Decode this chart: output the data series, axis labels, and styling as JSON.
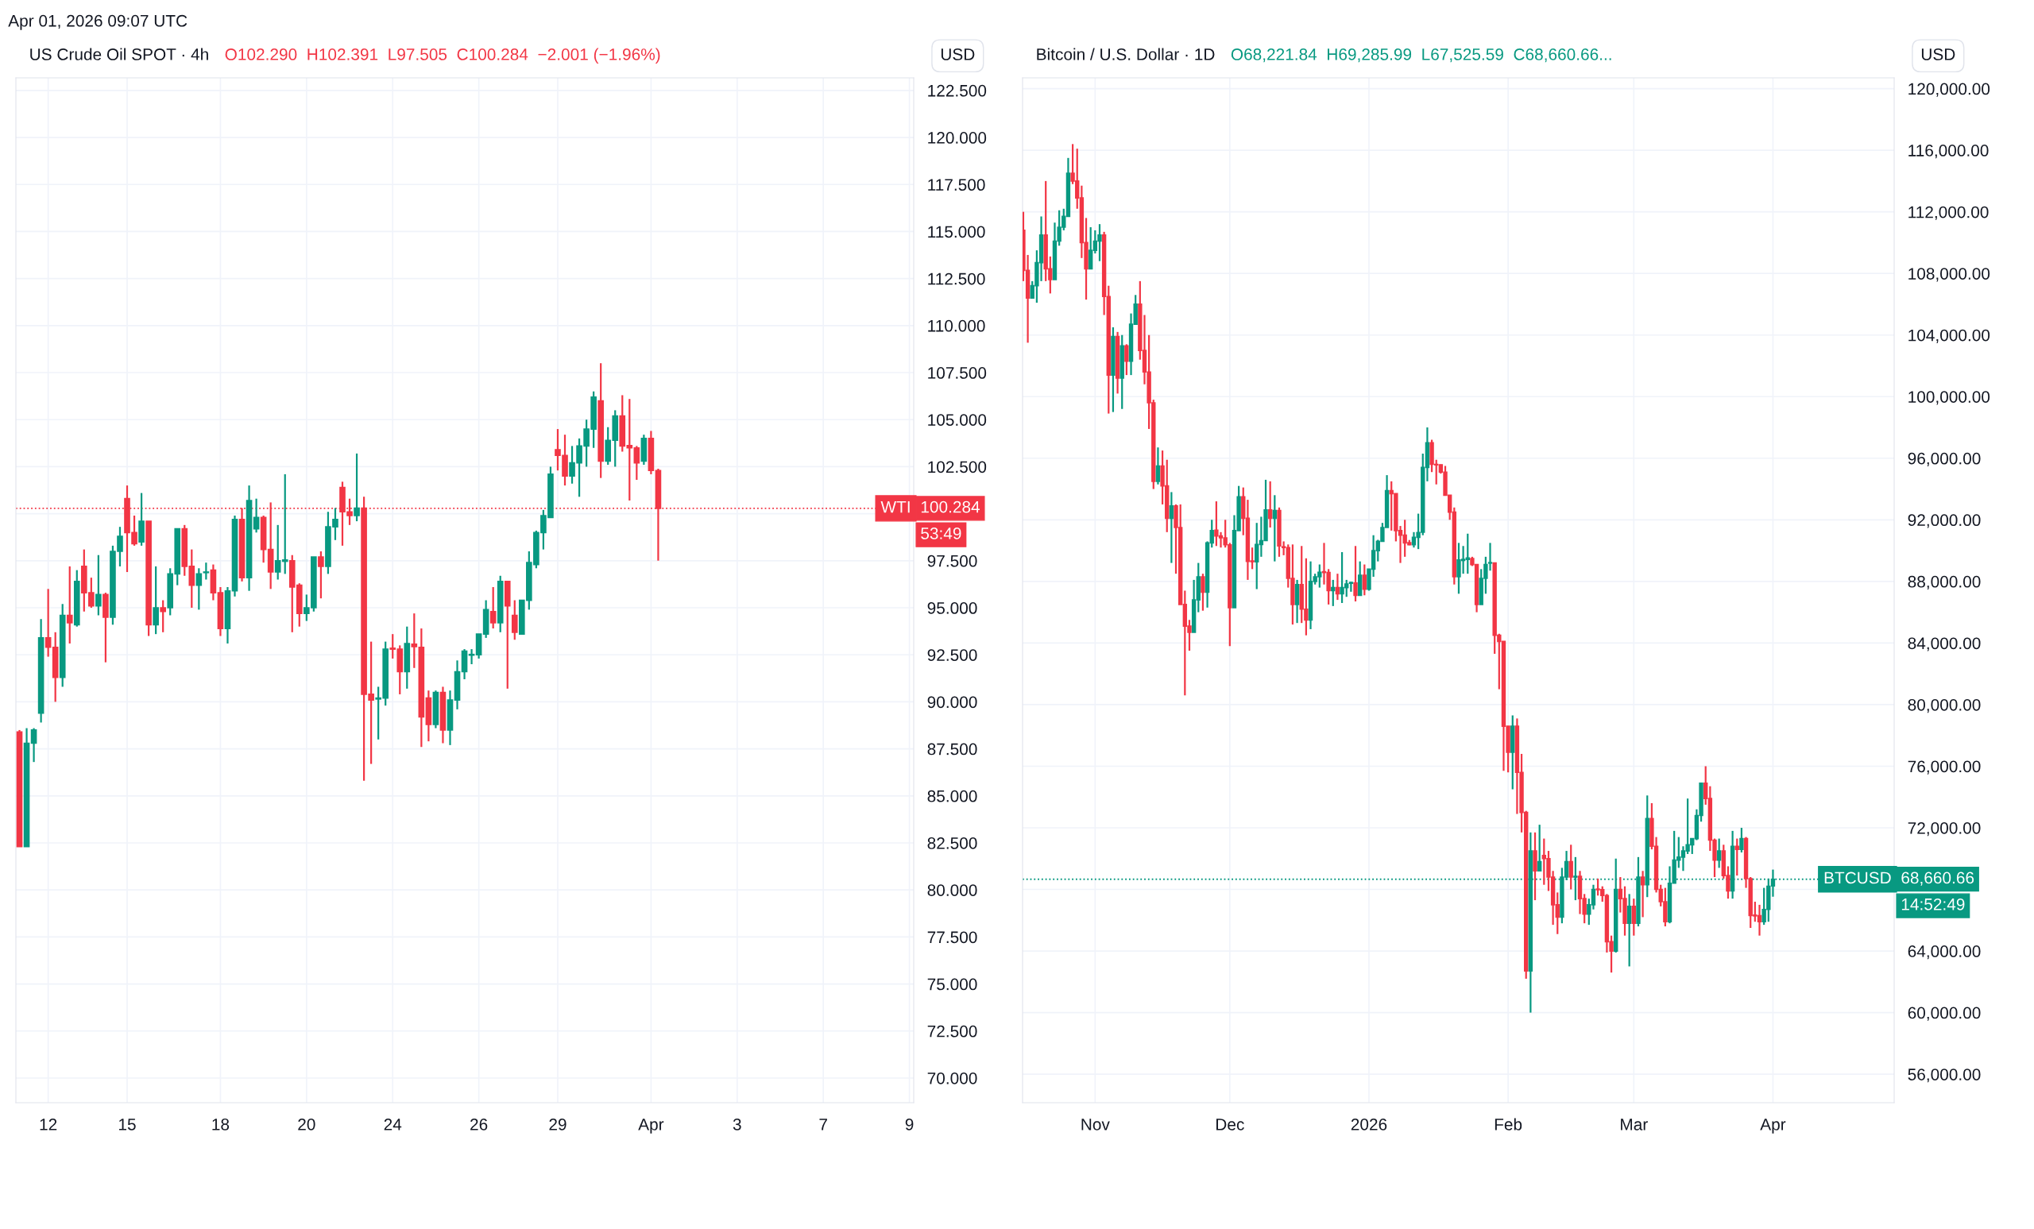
{
  "chart_data": [
    {
      "type": "candlestick",
      "title": "US Crude Oil SPOT · 4h",
      "subtitle": "O102.290  H102.391  L97.505  C100.284  −2.001 (−1.96%)",
      "ylabel": "USD",
      "colors": [
        "#f23645",
        "#089981",
        "#089981",
        "#089981",
        "#f23645",
        "#f23645",
        "#089981",
        "#f23645",
        "#089981",
        "#f23645",
        "#f23645",
        "#089981",
        "#f23645",
        "#089981",
        "#089981",
        "#f23645",
        "#f23645",
        "#089981",
        "#f23645",
        "#089981",
        "#f23645",
        "#089981",
        "#089981",
        "#f23645",
        "#f23645",
        "#089981",
        "#089981",
        "#f23645",
        "#f23645",
        "#089981",
        "#089981",
        "#f23645",
        "#089981",
        "#089981",
        "#f23645",
        "#f23645",
        "#089981",
        "#089981",
        "#f23645",
        "#f23645",
        "#089981",
        "#089981",
        "#f23645",
        "#089981",
        "#089981",
        "#f23645",
        "#f23645",
        "#089981",
        "#f23645",
        "#f23645",
        "#089981",
        "#089981",
        "#f23645",
        "#f23645",
        "#089981",
        "#f23645",
        "#f23645",
        "#f23645",
        "#089981",
        "#f23645",
        "#089981",
        "#089981",
        "#089981",
        "#089981",
        "#089981",
        "#089981",
        "#f23645",
        "#089981",
        "#f23645",
        "#f23645",
        "#089981",
        "#089981",
        "#089981",
        "#089981",
        "#089981",
        "#f23645",
        "#f23645",
        "#089981",
        "#089981",
        "#089981",
        "#089981",
        "#f23645",
        "#089981",
        "#089981",
        "#f23645",
        "#f23645",
        "#f23645",
        "#089981",
        "#f23645",
        "#f23645",
        null,
        null,
        null,
        null,
        null,
        null,
        null,
        null,
        null,
        null,
        null,
        null,
        null,
        null,
        null,
        null,
        null,
        null,
        null,
        null,
        null,
        null,
        null,
        null,
        null,
        null,
        null,
        null,
        null,
        null,
        null,
        null,
        null,
        null,
        null
      ],
      "categories": [
        null,
        null,
        null,
        null,
        "12",
        null,
        null,
        null,
        null,
        null,
        null,
        null,
        null,
        null,
        null,
        "15",
        null,
        null,
        null,
        null,
        null,
        null,
        null,
        null,
        null,
        null,
        null,
        null,
        "18",
        null,
        null,
        null,
        null,
        null,
        null,
        null,
        null,
        null,
        null,
        null,
        "20",
        null,
        null,
        null,
        null,
        null,
        null,
        null,
        null,
        null,
        null,
        null,
        "24",
        null,
        null,
        null,
        null,
        null,
        null,
        null,
        null,
        null,
        null,
        null,
        "26",
        null,
        null,
        null,
        null,
        null,
        null,
        null,
        null,
        null,
        null,
        "29",
        null,
        null,
        null,
        null,
        null,
        null,
        null,
        null,
        null,
        null,
        null,
        null,
        "Apr",
        null,
        null,
        null,
        null,
        null,
        null,
        null,
        null,
        null,
        null,
        null,
        "3",
        null,
        null,
        null,
        null,
        null,
        null,
        null,
        null,
        null,
        null,
        null,
        "7",
        null,
        null,
        null,
        null,
        null,
        null,
        null,
        null,
        null,
        null,
        null,
        "9"
      ],
      "ohlc": [
        [
          88.4,
          88.5,
          82.3,
          82.3
        ],
        [
          82.3,
          88.6,
          82.3,
          87.8
        ],
        [
          87.8,
          88.6,
          86.8,
          88.5
        ],
        [
          89.4,
          94.4,
          88.9,
          93.4
        ],
        [
          93.4,
          96.0,
          92.4,
          92.9
        ],
        [
          92.9,
          93.7,
          90.0,
          91.3
        ],
        [
          91.3,
          95.2,
          90.8,
          94.6
        ],
        [
          94.6,
          97.2,
          93.1,
          94.2
        ],
        [
          94.1,
          97.0,
          94.0,
          96.4
        ],
        [
          97.2,
          98.1,
          94.8,
          95.8
        ],
        [
          95.8,
          96.6,
          95.0,
          95.1
        ],
        [
          95.1,
          97.8,
          94.6,
          95.7
        ],
        [
          95.7,
          95.8,
          92.1,
          94.5
        ],
        [
          94.5,
          98.3,
          94.1,
          98.0
        ],
        [
          98.0,
          99.3,
          97.2,
          98.8
        ],
        [
          100.8,
          101.5,
          96.9,
          99.0
        ],
        [
          99.0,
          99.9,
          98.3,
          98.4
        ],
        [
          98.5,
          101.1,
          98.3,
          99.6
        ],
        [
          99.6,
          99.6,
          93.5,
          94.1
        ],
        [
          94.1,
          97.2,
          93.6,
          95.0
        ],
        [
          95.0,
          95.4,
          93.7,
          94.8
        ],
        [
          95.0,
          97.1,
          94.6,
          96.8
        ],
        [
          96.8,
          99.2,
          96.2,
          99.2
        ],
        [
          99.2,
          99.4,
          96.7,
          97.2
        ],
        [
          97.2,
          98.1,
          95.0,
          96.2
        ],
        [
          96.2,
          97.1,
          94.9,
          96.8
        ],
        [
          96.87,
          97.4,
          96.5,
          96.9
        ],
        [
          97.0,
          97.3,
          95.4,
          95.8
        ],
        [
          95.8,
          96.1,
          93.5,
          93.9
        ],
        [
          93.9,
          96.1,
          93.1,
          95.9
        ],
        [
          95.9,
          99.9,
          95.6,
          99.7
        ],
        [
          99.7,
          100.3,
          96.4,
          96.6
        ],
        [
          96.6,
          101.5,
          95.9,
          100.7
        ],
        [
          99.2,
          100.8,
          99.0,
          99.8
        ],
        [
          99.8,
          99.9,
          97.4,
          98.1
        ],
        [
          98.1,
          100.6,
          96.0,
          96.9
        ],
        [
          96.9,
          99.4,
          96.5,
          97.5
        ],
        [
          97.47,
          102.1,
          96.8,
          97.54
        ],
        [
          97.5,
          97.8,
          93.7,
          96.1
        ],
        [
          96.2,
          96.3,
          94.0,
          94.7
        ],
        [
          94.7,
          95.7,
          94.3,
          95.0
        ],
        [
          95.0,
          97.7,
          94.8,
          97.7
        ],
        [
          97.7,
          98.0,
          95.5,
          97.2
        ],
        [
          97.2,
          100.1,
          96.8,
          99.3
        ],
        [
          99.3,
          100.3,
          98.6,
          99.7
        ],
        [
          101.4,
          101.7,
          98.3,
          100.1
        ],
        [
          100.1,
          100.8,
          99.4,
          99.9
        ],
        [
          99.9,
          103.2,
          99.6,
          100.3
        ],
        [
          100.3,
          100.9,
          85.8,
          90.4
        ],
        [
          90.4,
          93.2,
          86.7,
          90.1
        ],
        [
          90.15,
          90.8,
          88.0,
          90.2
        ],
        [
          90.2,
          93.2,
          89.8,
          92.8
        ],
        [
          92.85,
          93.6,
          92.3,
          92.8
        ],
        [
          92.8,
          93.0,
          90.4,
          91.6
        ],
        [
          91.6,
          94.0,
          90.7,
          93.1
        ],
        [
          93.07,
          94.7,
          91.8,
          92.94
        ],
        [
          92.9,
          93.9,
          87.6,
          89.2
        ],
        [
          90.2,
          90.6,
          87.9,
          88.8
        ],
        [
          88.8,
          90.6,
          88.6,
          90.5
        ],
        [
          90.5,
          90.8,
          87.8,
          88.5
        ],
        [
          88.5,
          90.6,
          87.7,
          90.1
        ],
        [
          90.1,
          92.2,
          89.6,
          91.6
        ],
        [
          91.6,
          92.8,
          91.2,
          92.7
        ],
        [
          92.48,
          92.8,
          92.0,
          92.52
        ],
        [
          92.5,
          93.6,
          92.3,
          93.6
        ],
        [
          93.6,
          95.4,
          93.4,
          94.9
        ],
        [
          94.8,
          96.1,
          93.9,
          94.2
        ],
        [
          94.2,
          96.7,
          93.7,
          96.4
        ],
        [
          96.4,
          96.4,
          90.7,
          95.1
        ],
        [
          94.6,
          95.4,
          93.3,
          93.7
        ],
        [
          93.6,
          95.4,
          93.6,
          95.4
        ],
        [
          95.4,
          98.0,
          94.9,
          97.4
        ],
        [
          97.3,
          99.1,
          97.1,
          99.0
        ],
        [
          99.0,
          100.2,
          98.1,
          99.9
        ],
        [
          99.8,
          102.5,
          99.8,
          102.1
        ],
        [
          103.4,
          104.5,
          102.3,
          103.1
        ],
        [
          103.1,
          104.2,
          101.5,
          102.0
        ],
        [
          102.0,
          103.6,
          101.6,
          102.7
        ],
        [
          102.7,
          104.0,
          100.9,
          103.6
        ],
        [
          103.6,
          105.0,
          102.5,
          104.5
        ],
        [
          104.5,
          106.5,
          103.5,
          106.2
        ],
        [
          106.0,
          108.0,
          101.9,
          102.8
        ],
        [
          102.8,
          104.6,
          102.6,
          103.9
        ],
        [
          103.9,
          105.5,
          102.5,
          105.2
        ],
        [
          105.2,
          106.3,
          103.3,
          103.6
        ],
        [
          103.62,
          106.1,
          100.7,
          103.5
        ],
        [
          103.5,
          103.6,
          101.8,
          102.7
        ],
        [
          102.8,
          104.2,
          102.6,
          104.0
        ],
        [
          104.0,
          104.4,
          102.1,
          102.3
        ],
        [
          102.29,
          102.391,
          97.505,
          100.284
        ],
        null,
        null,
        null,
        null,
        null,
        null,
        null,
        null,
        null,
        null,
        null,
        null,
        null,
        null,
        null,
        null,
        null,
        null,
        null,
        null,
        null,
        null,
        null,
        null,
        null,
        null,
        null,
        null,
        null,
        null,
        null,
        null,
        null,
        null,
        null
      ],
      "ylim": [
        68.69,
        123.17
      ],
      "yticks": [
        {
          "value": 70,
          "label": "70.000"
        },
        {
          "value": 72.5,
          "label": "72.500"
        },
        {
          "value": 75,
          "label": "75.000"
        },
        {
          "value": 77.5,
          "label": "77.500"
        },
        {
          "value": 80,
          "label": "80.000"
        },
        {
          "value": 82.5,
          "label": "82.500"
        },
        {
          "value": 85,
          "label": "85.000"
        },
        {
          "value": 87.5,
          "label": "87.500"
        },
        {
          "value": 90,
          "label": "90.000"
        },
        {
          "value": 92.5,
          "label": "92.500"
        },
        {
          "value": 95,
          "label": "95.000"
        },
        {
          "value": 97.5,
          "label": "97.500"
        },
        {
          "value": 100,
          "label": null
        },
        {
          "value": 102.5,
          "label": "102.500"
        },
        {
          "value": 105,
          "label": "105.000"
        },
        {
          "value": 107.5,
          "label": "107.500"
        },
        {
          "value": 110,
          "label": "110.000"
        },
        {
          "value": 112.5,
          "label": "112.500"
        },
        {
          "value": 115,
          "label": "115.000"
        },
        {
          "value": 117.5,
          "label": "117.500"
        },
        {
          "value": 120,
          "label": "120.000"
        },
        {
          "value": 122.5,
          "label": "122.500"
        }
      ],
      "grid": true,
      "ref_lines": [
        {
          "axis": "y",
          "value": 100.284,
          "label": "WTI",
          "color": "#f23645",
          "line_style": "dotted"
        }
      ],
      "annotations": [
        "Apr 01, 2026 09:07 UTC",
        "100.284",
        "53:49"
      ]
    },
    {
      "type": "candlestick",
      "title": "Bitcoin / U.S. Dollar · 1D",
      "subtitle": "O68,221.84  H69,285.99  L67,525.59  C68,660.66...",
      "ylabel": "USD",
      "colors": [
        "#f23645",
        "#f23645",
        "#089981",
        "#089981",
        "#089981",
        "#f23645",
        "#f23645",
        "#089981",
        "#089981",
        "#089981",
        "#089981",
        "#f23645",
        "#f23645",
        "#f23645",
        "#f23645",
        "#089981",
        "#089981",
        "#089981",
        "#f23645",
        "#f23645",
        "#089981",
        "#f23645",
        "#089981",
        "#f23645",
        "#089981",
        "#089981",
        "#f23645",
        "#f23645",
        "#f23645",
        "#f23645",
        "#089981",
        "#f23645",
        "#f23645",
        "#089981",
        "#f23645",
        "#f23645",
        "#f23645",
        "#f23645",
        "#089981",
        "#089981",
        "#f23645",
        "#089981",
        "#089981",
        "#f23645",
        "#f23645",
        "#f23645",
        "#f23645",
        "#089981",
        "#089981",
        "#f23645",
        "#f23645",
        "#f23645",
        "#089981",
        "#089981",
        "#089981",
        "#f23645",
        "#089981",
        "#f23645",
        "#f23645",
        "#f23645",
        "#f23645",
        "#089981",
        "#f23645",
        "#f23645",
        "#089981",
        "#089981",
        "#089981",
        "#f23645",
        "#f23645",
        "#089981",
        "#f23645",
        "#089981",
        "#089981",
        "#089981",
        "#f23645",
        "#089981",
        "#f23645",
        "#089981",
        "#089981",
        "#089981",
        "#089981",
        "#089981",
        "#f23645",
        "#f23645",
        "#f23645",
        "#f23645",
        "#f23645",
        "#089981",
        "#089981",
        "#089981",
        "#089981",
        "#f23645",
        "#f23645",
        "#f23645",
        "#f23645",
        "#f23645",
        "#f23645",
        "#089981",
        "#089981",
        "#089981",
        "#f23645",
        "#f23645",
        "#089981",
        "#089981",
        "#089981",
        "#f23645",
        "#f23645",
        "#f23645",
        "#f23645",
        "#089981",
        "#f23645",
        "#f23645",
        "#f23645",
        "#089981",
        "#f23645",
        "#089981",
        "#f23645",
        "#f23645",
        "#f23645",
        "#f23645",
        "#089981",
        "#089981",
        "#f23645",
        "#089981",
        "#f23645",
        "#f23645",
        "#089981",
        "#089981",
        "#f23645",
        "#f23645",
        "#f23645",
        "#f23645",
        "#089981",
        "#f23645",
        "#f23645",
        "#089981",
        "#f23645",
        "#089981",
        "#f23645",
        "#089981",
        "#f23645",
        "#f23645",
        "#f23645",
        "#f23645",
        "#089981",
        "#089981",
        "#089981",
        "#089981",
        "#089981",
        "#089981",
        "#089981",
        "#089981",
        "#f23645",
        "#f23645",
        "#f23645",
        "#089981",
        "#f23645",
        "#f23645",
        "#089981",
        "#f23645",
        "#089981",
        "#f23645",
        "#f23645",
        "#f23645",
        "#f23645",
        "#089981",
        "#089981",
        "#089981"
      ],
      "x": [
        "2025-10-16",
        "2025-10-17",
        "2025-10-18",
        "2025-10-19",
        "2025-10-20",
        "2025-10-21",
        "2025-10-22",
        "2025-10-23",
        "2025-10-24",
        "2025-10-25",
        "2025-10-26",
        "2025-10-27",
        "2025-10-28",
        "2025-10-29",
        "2025-10-30",
        "2025-10-31",
        "2025-11-01",
        "2025-11-02",
        "2025-11-03",
        "2025-11-04",
        "2025-11-05",
        "2025-11-06",
        "2025-11-07",
        "2025-11-08",
        "2025-11-09",
        "2025-11-10",
        "2025-11-11",
        "2025-11-12",
        "2025-11-13",
        "2025-11-14",
        "2025-11-15",
        "2025-11-16",
        "2025-11-17",
        "2025-11-18",
        "2025-11-19",
        "2025-11-20",
        "2025-11-21",
        "2025-11-22",
        "2025-11-23",
        "2025-11-24",
        "2025-11-25",
        "2025-11-26",
        "2025-11-27",
        "2025-11-28",
        "2025-11-29",
        "2025-11-30",
        "2025-12-01",
        "2025-12-02",
        "2025-12-03",
        "2025-12-04",
        "2025-12-05",
        "2025-12-06",
        "2025-12-07",
        "2025-12-08",
        "2025-12-09",
        "2025-12-10",
        "2025-12-11",
        "2025-12-12",
        "2025-12-13",
        "2025-12-14",
        "2025-12-15",
        "2025-12-16",
        "2025-12-17",
        "2025-12-18",
        "2025-12-19",
        "2025-12-20",
        "2025-12-21",
        "2025-12-22",
        "2025-12-23",
        "2025-12-24",
        "2025-12-25",
        "2025-12-26",
        "2025-12-27",
        "2025-12-28",
        "2025-12-29",
        "2025-12-30",
        "2025-12-31",
        "2026-01-01",
        "2026-01-02",
        "2026-01-03",
        "2026-01-04",
        "2026-01-05",
        "2026-01-06",
        "2026-01-07",
        "2026-01-08",
        "2026-01-09",
        "2026-01-10",
        "2026-01-11",
        "2026-01-12",
        "2026-01-13",
        "2026-01-14",
        "2026-01-15",
        "2026-01-16",
        "2026-01-17",
        "2026-01-18",
        "2026-01-19",
        "2026-01-20",
        "2026-01-21",
        "2026-01-22",
        "2026-01-23",
        "2026-01-24",
        "2026-01-25",
        "2026-01-26",
        "2026-01-27",
        "2026-01-28",
        "2026-01-29",
        "2026-01-30",
        "2026-01-31",
        "2026-02-01",
        "2026-02-02",
        "2026-02-03",
        "2026-02-04",
        "2026-02-05",
        "2026-02-06",
        "2026-02-07",
        "2026-02-08",
        "2026-02-09",
        "2026-02-10",
        "2026-02-11",
        "2026-02-12",
        "2026-02-13",
        "2026-02-14",
        "2026-02-15",
        "2026-02-16",
        "2026-02-17",
        "2026-02-18",
        "2026-02-19",
        "2026-02-20",
        "2026-02-21",
        "2026-02-22",
        "2026-02-23",
        "2026-02-24",
        "2026-02-25",
        "2026-02-26",
        "2026-02-27",
        "2026-02-28",
        "2026-03-01",
        "2026-03-02",
        "2026-03-03",
        "2026-03-04",
        "2026-03-05",
        "2026-03-06",
        "2026-03-07",
        "2026-03-08",
        "2026-03-09",
        "2026-03-10",
        "2026-03-11",
        "2026-03-12",
        "2026-03-13",
        "2026-03-14",
        "2026-03-15",
        "2026-03-16",
        "2026-03-17",
        "2026-03-18",
        "2026-03-19",
        "2026-03-20",
        "2026-03-21",
        "2026-03-22",
        "2026-03-23",
        "2026-03-24",
        "2026-03-25",
        "2026-03-26",
        "2026-03-27",
        "2026-03-28",
        "2026-03-29",
        "2026-03-30",
        "2026-03-31",
        "2026-04-01"
      ],
      "ohlc": [
        [
          110800,
          112000,
          107500,
          108200
        ],
        [
          108200,
          109200,
          103500,
          106400
        ],
        [
          106400,
          107500,
          106400,
          107200
        ],
        [
          107200,
          109500,
          106100,
          108700
        ],
        [
          108700,
          111700,
          107500,
          110500
        ],
        [
          110500,
          114000,
          107500,
          108300
        ],
        [
          108300,
          109100,
          106700,
          107600
        ],
        [
          107600,
          111300,
          107600,
          110100
        ],
        [
          110100,
          112100,
          109800,
          111000
        ],
        [
          111000,
          112200,
          110800,
          111700
        ],
        [
          111700,
          115500,
          111700,
          114500
        ],
        [
          114500,
          116400,
          113800,
          114000
        ],
        [
          114000,
          116100,
          112200,
          112900
        ],
        [
          112900,
          113700,
          109000,
          110000
        ],
        [
          110000,
          111600,
          106300,
          108300
        ],
        [
          108300,
          111000,
          108300,
          109500
        ],
        [
          109500,
          110800,
          109300,
          110100
        ],
        [
          110100,
          111200,
          108800,
          110500
        ],
        [
          110500,
          110700,
          105300,
          106500
        ],
        [
          106500,
          107200,
          98900,
          101400
        ],
        [
          101400,
          104500,
          99000,
          103900
        ],
        [
          103900,
          104200,
          100200,
          101200
        ],
        [
          101200,
          104000,
          99200,
          103300
        ],
        [
          103300,
          103400,
          101400,
          102300
        ],
        [
          102300,
          105400,
          101400,
          104700
        ],
        [
          104700,
          106600,
          104700,
          106000
        ],
        [
          106000,
          107500,
          102400,
          103000
        ],
        [
          103000,
          105300,
          100800,
          101600
        ],
        [
          101600,
          104000,
          97900,
          99600
        ],
        [
          99600,
          99800,
          94000,
          94500
        ],
        [
          94500,
          96700,
          94300,
          95500
        ],
        [
          95500,
          96500,
          93000,
          94200
        ],
        [
          94200,
          95900,
          91200,
          92100
        ],
        [
          92100,
          93800,
          89200,
          92900
        ],
        [
          92900,
          93000,
          88500,
          91500
        ],
        [
          91500,
          93000,
          86500,
          86500
        ],
        [
          86500,
          87400,
          80600,
          85100
        ],
        [
          85100,
          85500,
          83500,
          84700
        ],
        [
          84700,
          88100,
          84700,
          86800
        ],
        [
          86800,
          89200,
          86000,
          88300
        ],
        [
          88300,
          88500,
          86100,
          87300
        ],
        [
          87300,
          90600,
          86300,
          90500
        ],
        [
          90500,
          92000,
          90200,
          91300
        ],
        [
          91330,
          93200,
          90300,
          90950
        ],
        [
          90950,
          91200,
          90200,
          90830
        ],
        [
          90830,
          92000,
          90200,
          90380
        ],
        [
          90380,
          90500,
          83800,
          86300
        ],
        [
          86300,
          92300,
          86300,
          91300
        ],
        [
          91300,
          94200,
          91300,
          93500
        ],
        [
          93500,
          94100,
          91000,
          92100
        ],
        [
          92100,
          93300,
          88100,
          89300
        ],
        [
          89330,
          90200,
          88800,
          89280
        ],
        [
          89280,
          91800,
          87500,
          90400
        ],
        [
          90400,
          92200,
          89600,
          90650
        ],
        [
          90650,
          94600,
          90650,
          92650
        ],
        [
          92650,
          94500,
          91500,
          92100
        ],
        [
          92100,
          93600,
          89300,
          92600
        ],
        [
          92600,
          92800,
          89600,
          90300
        ],
        [
          90250,
          90600,
          89700,
          90200
        ],
        [
          90200,
          90400,
          87600,
          88200
        ],
        [
          88200,
          90400,
          85200,
          86500
        ],
        [
          86500,
          88100,
          85300,
          87800
        ],
        [
          87800,
          90300,
          85300,
          86200
        ],
        [
          86200,
          89500,
          84500,
          85500
        ],
        [
          85500,
          89300,
          84900,
          88000
        ],
        [
          88000,
          88500,
          87800,
          88300
        ],
        [
          88300,
          89100,
          87600,
          88600
        ],
        [
          88630,
          90500,
          87800,
          88580
        ],
        [
          88580,
          88800,
          86500,
          87400
        ],
        [
          87400,
          88100,
          86400,
          87600
        ],
        [
          87600,
          88500,
          86800,
          87200
        ],
        [
          87200,
          89900,
          86600,
          87600
        ],
        [
          87600,
          88100,
          87000,
          87830
        ],
        [
          87880,
          87970,
          87330,
          87930
        ],
        [
          87900,
          90300,
          86700,
          87100
        ],
        [
          87100,
          89300,
          87100,
          88400
        ],
        [
          88400,
          89100,
          87100,
          87500
        ],
        [
          87500,
          88800,
          87400,
          88800
        ],
        [
          88800,
          91000,
          88300,
          90000
        ],
        [
          90000,
          90700,
          89300,
          90600
        ],
        [
          90600,
          91800,
          90600,
          91500
        ],
        [
          91500,
          94900,
          91500,
          93900
        ],
        [
          93900,
          94500,
          91300,
          93700
        ],
        [
          93700,
          93700,
          90600,
          91300
        ],
        [
          91300,
          91600,
          89200,
          91000
        ],
        [
          91000,
          92000,
          89600,
          90500
        ],
        [
          90520,
          90690,
          90350,
          90380
        ],
        [
          90380,
          91200,
          90200,
          90860
        ],
        [
          90860,
          92400,
          90100,
          91170
        ],
        [
          91200,
          96300,
          91000,
          95400
        ],
        [
          95400,
          98000,
          94500,
          97000
        ],
        [
          97000,
          97200,
          95100,
          95600
        ],
        [
          95600,
          95900,
          94300,
          95570
        ],
        [
          95570,
          95600,
          95000,
          95100
        ],
        [
          95100,
          95500,
          93600,
          93600
        ],
        [
          93600,
          93600,
          92000,
          92500
        ],
        [
          92500,
          92800,
          87800,
          88300
        ],
        [
          88300,
          90500,
          87200,
          89400
        ],
        [
          89360,
          90300,
          88500,
          89430
        ],
        [
          89430,
          91100,
          88500,
          89520
        ],
        [
          89480,
          89600,
          89000,
          89090
        ],
        [
          89100,
          89100,
          86000,
          86500
        ],
        [
          86500,
          88800,
          86500,
          88200
        ],
        [
          88200,
          89600,
          87200,
          89100
        ],
        [
          89190,
          90500,
          88700,
          89220
        ],
        [
          89200,
          89200,
          83300,
          84500
        ],
        [
          84500,
          84600,
          81000,
          84100
        ],
        [
          84100,
          84100,
          75700,
          78600
        ],
        [
          78600,
          78600,
          75600,
          76900
        ],
        [
          76900,
          79300,
          74500,
          78600
        ],
        [
          78600,
          79100,
          72900,
          75600
        ],
        [
          75600,
          76800,
          71700,
          73000
        ],
        [
          73000,
          73100,
          62200,
          62700
        ],
        [
          62700,
          71700,
          60000,
          70500
        ],
        [
          70500,
          71700,
          67300,
          69200
        ],
        [
          69200,
          72200,
          69200,
          69800
        ],
        [
          70200,
          71300,
          68300,
          70000
        ],
        [
          70000,
          70500,
          67900,
          68800
        ],
        [
          68800,
          69200,
          65700,
          67000
        ],
        [
          67000,
          67800,
          65100,
          66200
        ],
        [
          66200,
          69400,
          65800,
          68800
        ],
        [
          68800,
          70500,
          68600,
          69800
        ],
        [
          69800,
          70900,
          68000,
          68800
        ],
        [
          68800,
          70100,
          67300,
          68850
        ],
        [
          68850,
          69200,
          66400,
          67400
        ],
        [
          67400,
          67700,
          65800,
          66400
        ],
        [
          66400,
          67400,
          65700,
          67000
        ],
        [
          67000,
          68300,
          66700,
          68000
        ],
        [
          68020,
          68700,
          67600,
          67980
        ],
        [
          67980,
          68200,
          67200,
          67600
        ],
        [
          67600,
          67700,
          63900,
          64600
        ],
        [
          64600,
          65000,
          62600,
          64000
        ],
        [
          64000,
          70000,
          63900,
          68000
        ],
        [
          68000,
          68800,
          66500,
          67400
        ],
        [
          67400,
          68200,
          65000,
          65800
        ],
        [
          65800,
          67700,
          63000,
          66900
        ],
        [
          66900,
          67400,
          65000,
          65800
        ],
        [
          65800,
          70100,
          65600,
          68800
        ],
        [
          68800,
          69200,
          66200,
          68300
        ],
        [
          68300,
          74100,
          67500,
          72600
        ],
        [
          72600,
          73600,
          70600,
          70800
        ],
        [
          70800,
          71400,
          67800,
          68000
        ],
        [
          68000,
          68300,
          66900,
          67200
        ],
        [
          67200,
          68100,
          65600,
          65900
        ],
        [
          65900,
          69500,
          65800,
          68400
        ],
        [
          68400,
          71800,
          68400,
          69900
        ],
        [
          69900,
          71400,
          69400,
          70100
        ],
        [
          70100,
          70800,
          69200,
          70500
        ],
        [
          70500,
          73900,
          70300,
          70900
        ],
        [
          70900,
          71300,
          70300,
          71300
        ],
        [
          71300,
          73200,
          71200,
          72800
        ],
        [
          72800,
          74900,
          72400,
          74900
        ],
        [
          74900,
          76000,
          73500,
          73900
        ],
        [
          73900,
          74700,
          70500,
          71200
        ],
        [
          71200,
          71300,
          68800,
          69900
        ],
        [
          69900,
          71300,
          69400,
          70500
        ],
        [
          70500,
          70900,
          68700,
          68900
        ],
        [
          68900,
          69500,
          67400,
          67900
        ],
        [
          67900,
          71800,
          67400,
          70800
        ],
        [
          70800,
          71300,
          68900,
          70600
        ],
        [
          70600,
          72000,
          70400,
          71300
        ],
        [
          71300,
          71400,
          68100,
          68700
        ],
        [
          68700,
          68800,
          65500,
          66300
        ],
        [
          66330,
          67200,
          65900,
          66280
        ],
        [
          66300,
          67000,
          65000,
          65900
        ],
        [
          65900,
          68100,
          65700,
          66700
        ],
        [
          66700,
          68700,
          65900,
          68200
        ],
        [
          68221.84,
          69285.99,
          67525.59,
          68660.66
        ]
      ],
      "xlim": [
        "2025-10-15T20:00",
        "2026-04-28"
      ],
      "xticks": [
        {
          "value": "2025-11-01",
          "label": "Nov"
        },
        {
          "value": "2025-12-01",
          "label": "Dec"
        },
        {
          "value": "2026-01-01",
          "label": "2026"
        },
        {
          "value": "2026-02-01",
          "label": "Feb"
        },
        {
          "value": "2026-03-01",
          "label": "Mar"
        },
        {
          "value": "2026-04-01",
          "label": "Apr"
        }
      ],
      "ylim": [
        54150,
        120700
      ],
      "yticks": [
        {
          "value": 56000,
          "label": "56,000.00"
        },
        {
          "value": 60000,
          "label": "60,000.00"
        },
        {
          "value": 64000,
          "label": "64,000.00"
        },
        {
          "value": 68000,
          "label": null
        },
        {
          "value": 72000,
          "label": "72,000.00"
        },
        {
          "value": 76000,
          "label": "76,000.00"
        },
        {
          "value": 80000,
          "label": "80,000.00"
        },
        {
          "value": 84000,
          "label": "84,000.00"
        },
        {
          "value": 88000,
          "label": "88,000.00"
        },
        {
          "value": 92000,
          "label": "92,000.00"
        },
        {
          "value": 96000,
          "label": "96,000.00"
        },
        {
          "value": 100000,
          "label": "100,000.00"
        },
        {
          "value": 104000,
          "label": "104,000.00"
        },
        {
          "value": 108000,
          "label": "108,000.00"
        },
        {
          "value": 112000,
          "label": "112,000.00"
        },
        {
          "value": 116000,
          "label": "116,000.00"
        },
        {
          "value": 120000,
          "label": "120,000.00"
        }
      ],
      "grid": true,
      "ref_lines": [
        {
          "axis": "y",
          "value": 68660.66,
          "label": "BTCUSD",
          "color": "#089981",
          "line_style": "dotted"
        }
      ],
      "annotations": [
        "68,660.66",
        "14:52:49"
      ]
    }
  ]
}
